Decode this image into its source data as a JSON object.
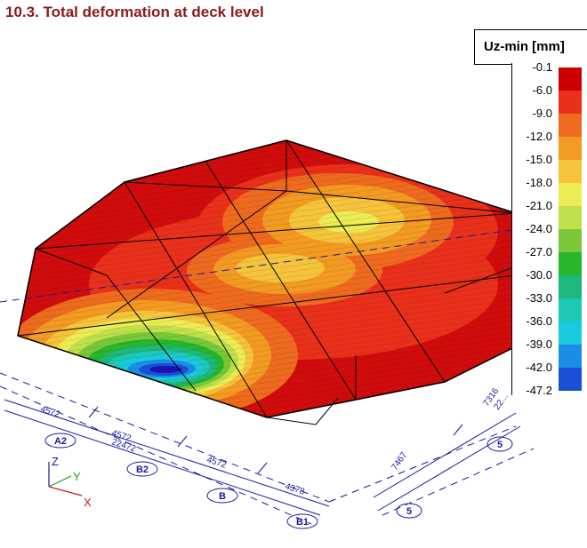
{
  "title": "10.3. Total deformation at deck level",
  "legend": {
    "title": "Uz-min [mm]",
    "ticks": [
      "-0.1",
      "-6.0",
      "-9.0",
      "-12.0",
      "-15.0",
      "-18.0",
      "-21.0",
      "-24.0",
      "-27.0",
      "-30.0",
      "-33.0",
      "-36.0",
      "-39.0",
      "-42.0",
      "-47.2"
    ],
    "colors": [
      "#cc0000",
      "#e8301a",
      "#ee6a1e",
      "#f39a22",
      "#f5c43a",
      "#ecec55",
      "#bfe04a",
      "#7ac83a",
      "#27b62c",
      "#1db87a",
      "#1ec8b4",
      "#1ac8e0",
      "#1a8ee6",
      "#1a50d8",
      "#1a14b4"
    ]
  },
  "axes": {
    "z": "Z",
    "y": "Y",
    "x": "X"
  },
  "grid_labels": {
    "a2": "A2",
    "b2": "B2",
    "b": "B",
    "b1": "B1",
    "five_a": "5",
    "five_b": "5"
  },
  "dimensions": {
    "d1": "4572",
    "d2": "4572",
    "d3": "22472",
    "d4": "4572",
    "d5": "4378",
    "d6": "7467",
    "d7": "7316",
    "d8": "22..."
  },
  "colors": {
    "title": "#8b1a1a",
    "grid": "#1a1aa0"
  }
}
